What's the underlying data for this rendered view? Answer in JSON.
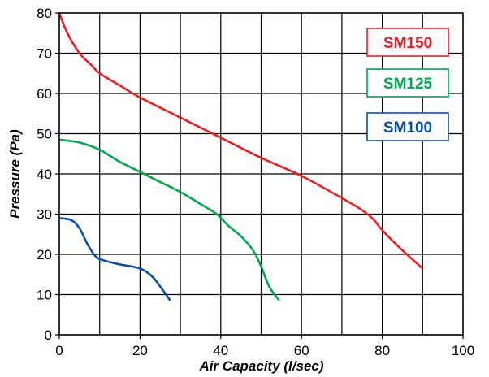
{
  "chart_data": {
    "type": "line",
    "xlabel": "Air Capacity (l/sec)",
    "ylabel": "Pressure (Pa)",
    "xlim": [
      0,
      100
    ],
    "ylim": [
      0,
      80
    ],
    "xticks": [
      "0",
      "20",
      "40",
      "60",
      "80",
      "100"
    ],
    "yticks": [
      "0",
      "10",
      "20",
      "30",
      "40",
      "50",
      "60",
      "70",
      "80"
    ],
    "grid": true,
    "legend_placement": "top-right",
    "series": [
      {
        "name": "SM150",
        "color": "#e8202a",
        "points": [
          [
            0,
            80
          ],
          [
            2,
            75
          ],
          [
            5,
            70
          ],
          [
            8,
            67
          ],
          [
            10,
            65
          ],
          [
            15,
            62
          ],
          [
            20,
            59
          ],
          [
            30,
            54
          ],
          [
            40,
            49
          ],
          [
            50,
            44
          ],
          [
            60,
            39.5
          ],
          [
            70,
            34
          ],
          [
            75,
            31
          ],
          [
            78,
            28.5
          ],
          [
            80,
            26
          ],
          [
            85,
            21
          ],
          [
            90,
            16.5
          ]
        ]
      },
      {
        "name": "SM125",
        "color": "#00a651",
        "points": [
          [
            0,
            48.5
          ],
          [
            5,
            47.8
          ],
          [
            10,
            46
          ],
          [
            15,
            43
          ],
          [
            20,
            40.5
          ],
          [
            25,
            38
          ],
          [
            30,
            35.5
          ],
          [
            35,
            32.5
          ],
          [
            39,
            30
          ],
          [
            42,
            27
          ],
          [
            45,
            24.5
          ],
          [
            48,
            21
          ],
          [
            50,
            17
          ],
          [
            52,
            12
          ],
          [
            54.5,
            8.5
          ]
        ]
      },
      {
        "name": "SM100",
        "color": "#0b4fa0",
        "points": [
          [
            0,
            29
          ],
          [
            3,
            28.5
          ],
          [
            5,
            26.5
          ],
          [
            7,
            22.5
          ],
          [
            9,
            19.5
          ],
          [
            11,
            18.5
          ],
          [
            15,
            17.5
          ],
          [
            20,
            16.5
          ],
          [
            23,
            14.5
          ],
          [
            25,
            12
          ],
          [
            27.5,
            8.5
          ]
        ]
      }
    ]
  }
}
